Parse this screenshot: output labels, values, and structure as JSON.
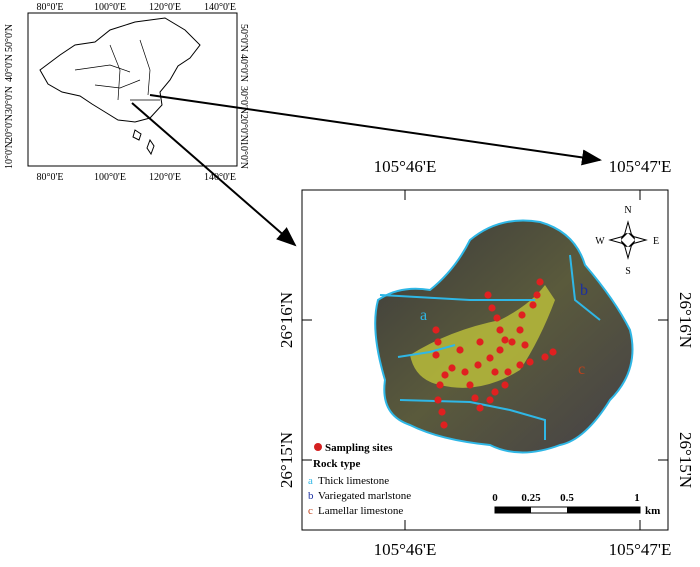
{
  "inset": {
    "lon_labels": [
      "80°0'E",
      "100°0'E",
      "120°0'E",
      "140°0'E"
    ],
    "lat_labels": [
      "50°0'N",
      "40°0'N",
      "30°0'N",
      "20°0'N",
      "10°0'N"
    ]
  },
  "main": {
    "lon_labels": [
      "105°46'E",
      "105°47'E"
    ],
    "lat_labels": [
      "26°16'N",
      "26°15'N"
    ]
  },
  "compass": {
    "n": "N",
    "e": "E",
    "s": "S",
    "w": "W"
  },
  "zones": [
    "a",
    "b",
    "c"
  ],
  "legend": {
    "sites": "Sampling sites",
    "title": "Rock type",
    "items": [
      {
        "key": "a",
        "label": "Thick limestone"
      },
      {
        "key": "b",
        "label": "Variegated marlstone"
      },
      {
        "key": "c",
        "label": "Lamellar limestone"
      }
    ]
  },
  "scale": {
    "ticks": [
      "0",
      "0.25",
      "0.5",
      "1"
    ],
    "unit": "km"
  }
}
